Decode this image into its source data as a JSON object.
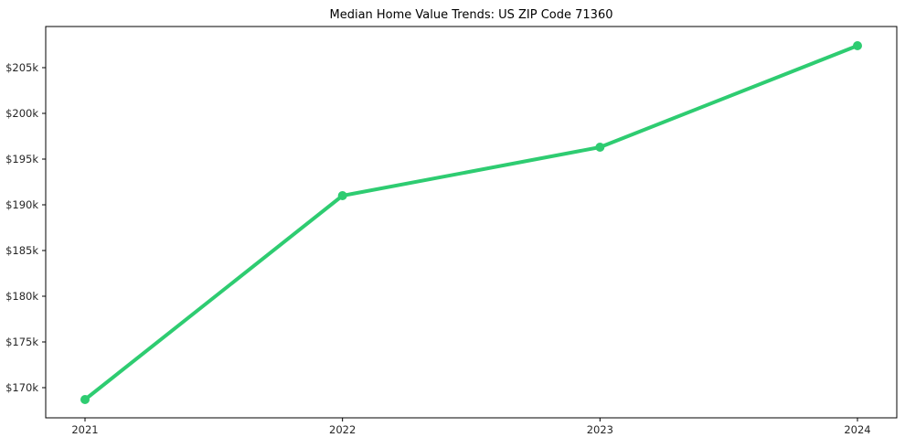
{
  "chart_data": {
    "type": "line",
    "title": "Median Home Value Trends: US ZIP Code 71360",
    "categories": [
      "2021",
      "2022",
      "2023",
      "2024"
    ],
    "series": [
      {
        "name": "median-home-value",
        "values": [
          168700,
          191000,
          196300,
          207400
        ]
      }
    ],
    "ylim": [
      166700,
      209500
    ],
    "yticks": [
      170000,
      175000,
      180000,
      185000,
      190000,
      195000,
      200000,
      205000
    ],
    "ytick_labels": [
      "$170k",
      "$175k",
      "$180k",
      "$185k",
      "$190k",
      "$195k",
      "$200k",
      "$205k"
    ],
    "xlabel": "",
    "ylabel": "",
    "grid": false,
    "legend": "none",
    "colors": {
      "line": "#2ecc71",
      "marker": "#2ecc71",
      "axis": "#000000",
      "tick_label": "#262626",
      "background": "#ffffff"
    }
  }
}
